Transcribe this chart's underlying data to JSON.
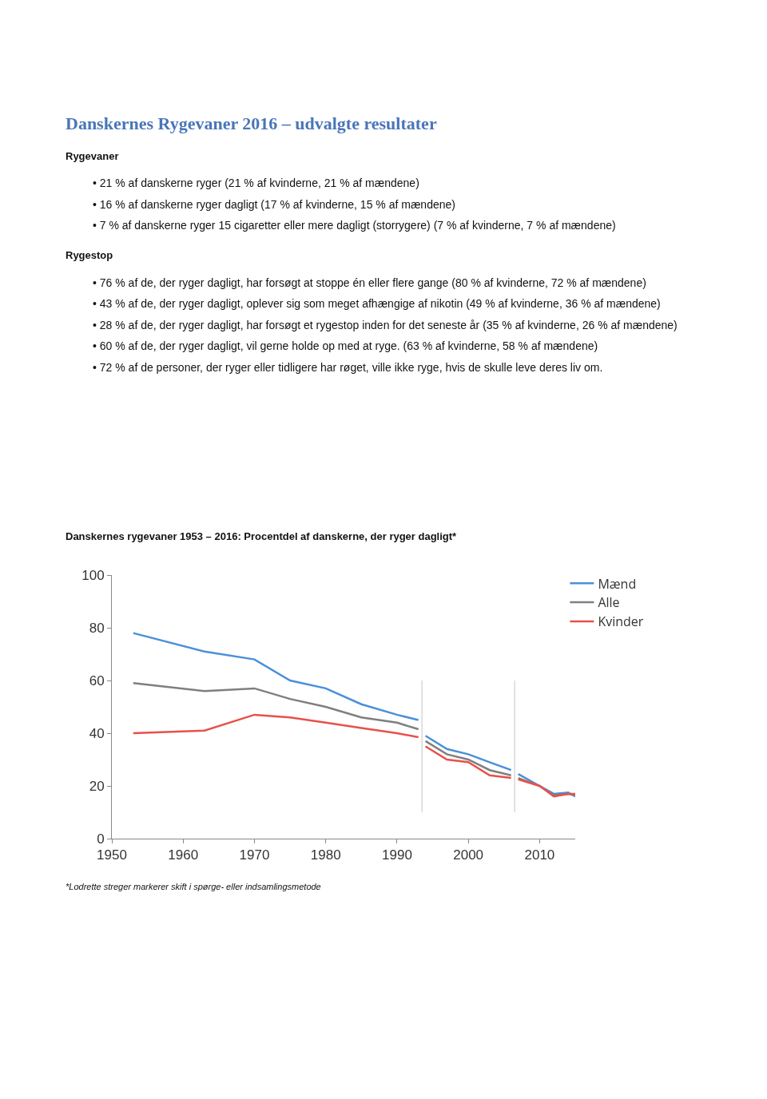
{
  "chart_data": {
    "type": "line",
    "title": "Danskernes rygevaner 1953 – 2016: Procentdel af danskerne, der ryger dagligt*",
    "annotations": [
      "Danskernes Rygevaner 2016 – udvalgte resultater",
      "Rygevaner",
      "• 21 % af danskerne ryger (21 % af kvinderne, 21 % af mændene)",
      "• 16 % af danskerne ryger dagligt (17 % af kvinderne, 15 % af mændene)",
      "• 7 % af danskerne ryger 15 cigaretter eller mere dagligt (storrygere) (7 % af kvinderne, 7 % af mændene)",
      "Rygestop",
      "• 76 % af de, der ryger dagligt, har forsøgt at stoppe én eller flere gange (80 % af kvinderne, 72 % af mændene)",
      "• 43 % af de, der ryger dagligt, oplever sig som meget afhængige af nikotin (49 % af kvinderne, 36 % af mændene)",
      "• 28 % af de, der ryger dagligt, har forsøgt et rygestop inden for det seneste år (35 % af kvinderne, 26 % af mændene)",
      "• 60 % af de, der ryger dagligt, vil gerne holde op med at ryge. (63 % af kvinderne, 58 % af mændene)",
      "• 72 % af de personer, der ryger eller tidligere har røget, ville ikke ryge, hvis de skulle leve deres liv om.",
      "*Lodrette streger markerer skift i spørge- eller indsamlingsmetode"
    ],
    "x": [
      1953,
      1963,
      1970,
      1975,
      1980,
      1985,
      1990,
      1993,
      1993.5,
      1994,
      1997,
      2000,
      2003,
      2006,
      2006.5,
      2007,
      2010,
      2012,
      2014,
      2015
    ],
    "series": [
      {
        "name": "Mænd",
        "color": "#4a90d9",
        "values": [
          78,
          71,
          68,
          60,
          57,
          51,
          47,
          45,
          null,
          39,
          34,
          32,
          29,
          26,
          null,
          24.5,
          20,
          17,
          17.5,
          16
        ]
      },
      {
        "name": "Alle",
        "color": "#7f7f7f",
        "values": [
          59,
          56,
          57,
          53,
          50,
          46,
          44,
          41.5,
          null,
          37,
          32,
          30,
          26,
          24,
          null,
          23,
          20,
          16.5,
          17,
          16.5
        ]
      },
      {
        "name": "Kvinder",
        "color": "#e8504a",
        "values": [
          40,
          41,
          47,
          46,
          44,
          42,
          40,
          38.5,
          null,
          35,
          30,
          29,
          24,
          23,
          null,
          22.5,
          20,
          16,
          17,
          17
        ]
      }
    ],
    "ref_lines": [
      {
        "axis": "x",
        "value": 1993.5,
        "color": "#d9d9d9"
      },
      {
        "axis": "x",
        "value": 2006.5,
        "color": "#d9d9d9"
      }
    ],
    "xlim": [
      1950,
      2015
    ],
    "xticks": [
      1950,
      1960,
      1970,
      1980,
      1990,
      2000,
      2010
    ],
    "ylim": [
      0,
      100
    ],
    "yticks": [
      0,
      20,
      40,
      60,
      80,
      100
    ],
    "grid": false,
    "legend": "top right",
    "marker": "none",
    "line_style": "solid"
  }
}
